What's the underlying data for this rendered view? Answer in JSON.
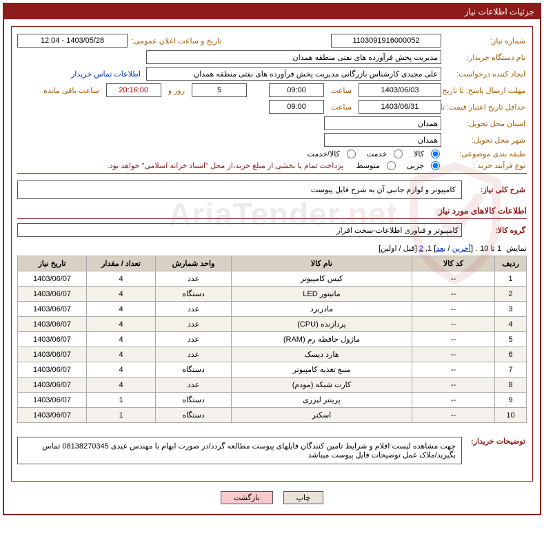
{
  "panel": {
    "title": "جزئیات اطلاعات نیاز"
  },
  "labels": {
    "need_no": "شماره نیاز:",
    "announce_dt": "تاریخ و ساعت اعلان عمومی:",
    "buyer_org": "نام دستگاه خریدار:",
    "req_creator": "ایجاد کننده درخواست:",
    "contact_link": "اطلاعات تماس خریدار",
    "resp_deadline": "مهلت ارسال پاسخ: تا تاریخ:",
    "hour": "ساعت",
    "days_and": "روز و",
    "time_remaining": "ساعت باقی مانده",
    "price_validity": "حداقل تاریخ اعتبار قیمت: تا تاریخ:",
    "delivery_province": "استان محل تحویل:",
    "delivery_city": "شهر محل تحویل:",
    "subject_class": "طبقه بندی موضوعی:",
    "radio_goods": "کالا",
    "radio_service": "خدمت",
    "radio_goods_service": "کالا/خدمت",
    "purchase_type": "نوع فرآیند خرید :",
    "radio_minor": "جزیی",
    "radio_medium": "متوسط",
    "payment_note": "پرداخت تمام یا بخشی از مبلغ خرید،از محل \"اسناد خزانه اسلامی\" خواهد بود.",
    "overall_desc": "شرح کلی نیاز:",
    "goods_section": "اطلاعات کالاهای مورد نیاز",
    "goods_group": "گروه کالا:",
    "buyer_notes": "توضیحات خریدار:",
    "btn_print": "چاپ",
    "btn_back": "بازگشت",
    "pager_pre": "نمایش",
    "pager_range": "1 تا 10",
    "pager_dot": ". [",
    "pager_last": "آخرین",
    "pager_sep": " / ",
    "pager_next": "بعد",
    "pager_mid": "] 1, ",
    "pager_2": "2",
    "pager_end": " [قبل / اولین]"
  },
  "values": {
    "need_no": "1103091916000052",
    "announce_dt": "1403/05/28 - 12:04",
    "buyer_org": "مدیریت پخش فرآورده های نفتی منطقه همدان",
    "req_creator": "علی مجیدی کارشناس بازرگانی مدیریت پخش فرآورده های نفتی منطقه همدان",
    "resp_date": "1403/06/03",
    "resp_hour": "09:00",
    "days_remain": "5",
    "time_remain": "20:16:00",
    "price_date": "1403/06/31",
    "price_hour": "09:00",
    "province": "همدان",
    "city": "همدان",
    "overall_desc": "کامپیوتر و لوازم جانبی آن به شرح فایل پیوست",
    "goods_group": "کامپیوتر و فناوری اطلاعات-سخت افزار",
    "buyer_notes": "جهت مشاهده لیست اقلام و شرایط تامین کنندگان فایلهای پیوست مطالعه گردد/در صورت ابهام با مهندس عبدی 08138270345 تماس بگیرید/ملاک عمل توضیحات فایل پیوست میباشد"
  },
  "table": {
    "headers": {
      "row": "ردیف",
      "code": "کد کالا",
      "name": "نام کالا",
      "unit": "واحد شمارش",
      "qty": "تعداد / مقدار",
      "date": "تاریخ نیاز"
    },
    "rows": [
      {
        "n": "1",
        "code": "--",
        "name": "کیس کامپیوتر",
        "unit": "عدد",
        "qty": "4",
        "date": "1403/06/07"
      },
      {
        "n": "2",
        "code": "--",
        "name": "مانیتور LED",
        "unit": "دستگاه",
        "qty": "4",
        "date": "1403/06/07"
      },
      {
        "n": "3",
        "code": "--",
        "name": "مادربرد",
        "unit": "عدد",
        "qty": "4",
        "date": "1403/06/07"
      },
      {
        "n": "4",
        "code": "--",
        "name": "پردازنده (CPU)",
        "unit": "عدد",
        "qty": "4",
        "date": "1403/06/07"
      },
      {
        "n": "5",
        "code": "--",
        "name": "ماژول حافظه رم (RAM)",
        "unit": "عدد",
        "qty": "4",
        "date": "1403/06/07"
      },
      {
        "n": "6",
        "code": "--",
        "name": "هارد دیسک",
        "unit": "عدد",
        "qty": "4",
        "date": "1403/06/07"
      },
      {
        "n": "7",
        "code": "--",
        "name": "منبع تغذیه کامپیوتر",
        "unit": "دستگاه",
        "qty": "4",
        "date": "1403/06/07"
      },
      {
        "n": "8",
        "code": "--",
        "name": "کارت شبکه (مودم)",
        "unit": "عدد",
        "qty": "4",
        "date": "1403/06/07"
      },
      {
        "n": "9",
        "code": "--",
        "name": "پرینتر لیزری",
        "unit": "دستگاه",
        "qty": "1",
        "date": "1403/06/07"
      },
      {
        "n": "10",
        "code": "--",
        "name": "اسکنر",
        "unit": "دستگاه",
        "qty": "1",
        "date": "1403/06/07"
      }
    ]
  },
  "watermark": {
    "text_black": "AriaTender",
    "text_red": "net",
    "sep": "."
  },
  "colors": {
    "brand": "#8d1b19",
    "label": "#a85c00",
    "link": "#0033cc",
    "th_bg": "#d9d1c3",
    "row_alt": "#f4f1ea",
    "btn_print": "#e8e3d6",
    "btn_back": "#f7c9c9"
  }
}
